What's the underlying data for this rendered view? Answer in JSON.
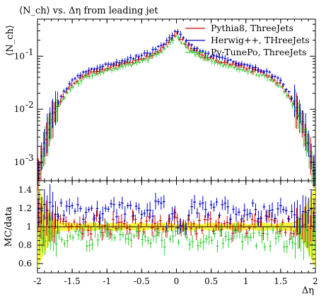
{
  "chart_data": {
    "type": "scatter",
    "title": "⟨N_ch⟩ vs. Δη from leading jet",
    "xlabel": "Δη",
    "main": {
      "ylabel": "⟨N_ch⟩",
      "ylog": true,
      "ylim": [
        0.00045,
        0.5
      ],
      "yticks": [
        0.001,
        0.01,
        0.1
      ],
      "ytick_labels": [
        "10",
        "10",
        "10"
      ],
      "ytick_exponents": [
        "-3",
        "-2",
        "-1"
      ]
    },
    "ratio": {
      "ylabel": "MC/data",
      "ylim": [
        0.5,
        1.5
      ],
      "yticks": [
        0.6,
        0.8,
        1.0,
        1.2,
        1.4
      ],
      "ytick_labels": [
        "0.6",
        "0.8",
        "1",
        "1.2",
        "1.4"
      ]
    },
    "xlim": [
      -2,
      2
    ],
    "xticks": [
      -2,
      -1.5,
      -1,
      -0.5,
      0,
      0.5,
      1,
      1.5,
      2
    ],
    "xtick_labels": [
      "-2",
      "-1.5",
      "-1",
      "-0.5",
      "0",
      "0.5",
      "1",
      "1.5",
      "2"
    ],
    "legend_position": "top-right",
    "series": [
      {
        "name": "Pythia8, ThreeJets",
        "color": "#cc0000"
      },
      {
        "name": "Herwig++, THreeJets",
        "color": "#0000cc"
      },
      {
        "name": "Py-TunePo, ThreeJets",
        "color": "#33cc33"
      }
    ],
    "shape_points": {
      "x": [
        -1.98,
        -1.9,
        -1.8,
        -1.7,
        -1.6,
        -1.5,
        -1.3,
        -1.0,
        -0.7,
        -0.4,
        -0.2,
        -0.05,
        0,
        0.05,
        0.2,
        0.4,
        0.7,
        1.0,
        1.3,
        1.5,
        1.6,
        1.7,
        1.8,
        1.9,
        1.98
      ],
      "y": [
        0.0006,
        0.002,
        0.006,
        0.012,
        0.02,
        0.03,
        0.045,
        0.06,
        0.075,
        0.1,
        0.14,
        0.22,
        0.28,
        0.22,
        0.14,
        0.1,
        0.075,
        0.06,
        0.045,
        0.03,
        0.02,
        0.012,
        0.006,
        0.002,
        0.0006
      ]
    },
    "series_scale": [
      1.0,
      1.15,
      0.9
    ],
    "ratio_mean": [
      1.02,
      1.18,
      0.88
    ]
  }
}
